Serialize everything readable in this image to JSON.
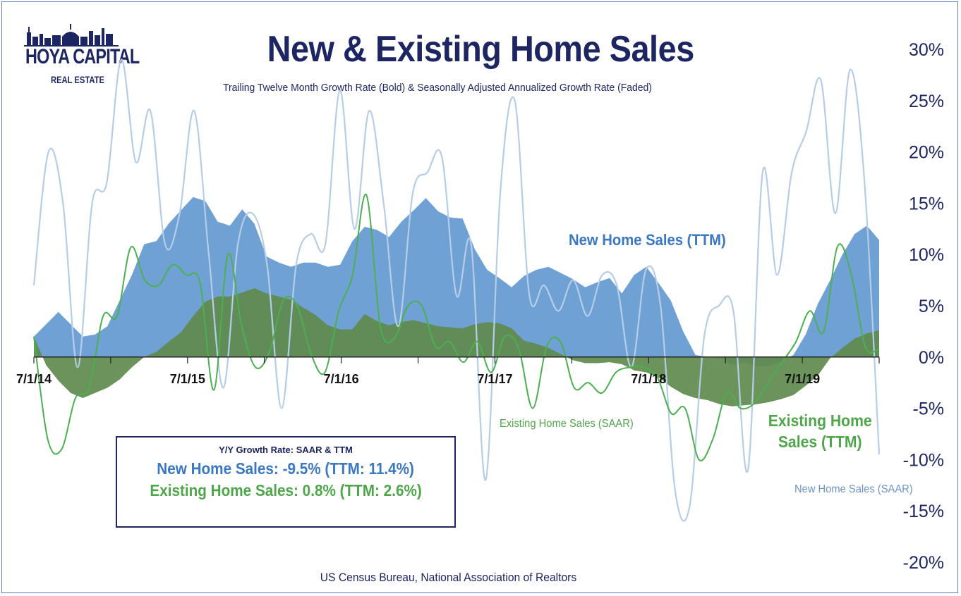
{
  "logo": {
    "line1": "HOYA CAPITAL",
    "line2": "REAL ESTATE",
    "color": "#1d2563"
  },
  "info_box": {
    "heading": "Y/Y Growth Rate: SAAR & TTM",
    "new_line": "New Home Sales: -9.5% (TTM: 11.4%)",
    "existing_line": "Existing Home Sales: 0.8% (TTM: 2.6%)"
  },
  "annotations": {
    "new_ttm": "New Home Sales (TTM)",
    "existing_ttm": [
      "Existing Home",
      "Sales (TTM)"
    ],
    "existing_saar": "Existing Home Sales (SAAR)",
    "new_saar": "New Home Sales (SAAR)"
  },
  "source": "US Census Bureau, National Association of Realtors",
  "colors": {
    "new_ttm_fill": "#6fa1d4",
    "existing_ttm_fill": "#5f8a4d",
    "new_saar_line": "#b6cde8",
    "existing_saar_line": "#4caf50",
    "title": "#1d2563"
  },
  "chart_data": {
    "type": "area",
    "title": "New & Existing Home Sales",
    "subtitle": "Trailing Twelve Month Growth Rate (Bold) & Seasonally Adjusted Annualized Growth Rate (Faded)",
    "ylim": [
      -20,
      30
    ],
    "yticks": [
      30,
      25,
      20,
      15,
      10,
      5,
      0,
      -5,
      -10,
      -15,
      -20
    ],
    "ytick_labels": [
      "30%",
      "25%",
      "20%",
      "15%",
      "10%",
      "5%",
      "0%",
      "-5%",
      "-10%",
      "-15%",
      "-20%"
    ],
    "x_axis_position": "y=0",
    "xtick_labels": [
      "7/1/14",
      "7/1/15",
      "7/1/16",
      "7/1/17",
      "7/1/18",
      "7/1/19"
    ],
    "xtick_month_index": [
      0,
      12,
      24,
      36,
      48,
      60
    ],
    "months": 67,
    "series": [
      {
        "name": "New Home Sales (TTM)",
        "style": "area",
        "values": [
          2,
          3.2,
          4.4,
          3.2,
          2,
          2.2,
          3,
          5.5,
          8,
          11,
          11.3,
          13,
          14.3,
          15.6,
          15.2,
          13.2,
          12.8,
          14.4,
          13,
          9.8,
          9.2,
          8.8,
          9.2,
          9.2,
          8.8,
          9,
          11.3,
          12.7,
          12.4,
          11.7,
          13.2,
          14.3,
          15.5,
          14.2,
          13.6,
          13.5,
          10.5,
          8.5,
          7.7,
          6.8,
          7.9,
          8.5,
          8.8,
          8.2,
          7.6,
          6.8,
          7.3,
          7.7,
          6.2,
          8.0,
          8.8,
          7.2,
          5.5,
          2.5,
          0.2,
          0.0,
          0.0,
          -0.8,
          -0.5,
          -0.9,
          -0.9,
          -0.4,
          0.2,
          2.2,
          5.2,
          7.5,
          10.0,
          12.0,
          12.8,
          11.4
        ]
      },
      {
        "name": "Existing Home Sales (TTM)",
        "style": "area",
        "values": [
          2,
          -0.8,
          -2.3,
          -3.5,
          -4,
          -3.5,
          -3,
          -2.2,
          -1,
          0,
          0.5,
          1.5,
          2.4,
          4,
          5.4,
          5.9,
          5.9,
          6.3,
          6.7,
          6.2,
          5.9,
          5.6,
          4.8,
          4.1,
          3.1,
          2.7,
          2.7,
          4.2,
          3.5,
          3.1,
          3.4,
          3.6,
          3.3,
          3.0,
          2.9,
          2.8,
          3.2,
          3.4,
          3.3,
          2.8,
          1.6,
          1.3,
          0.9,
          0.3,
          -0.3,
          -0.6,
          -0.6,
          -0.5,
          -0.7,
          -1.3,
          -1.5,
          -2.0,
          -2.9,
          -3.6,
          -4.0,
          -4.2,
          -4.6,
          -4.8,
          -4.7,
          -4.6,
          -4.4,
          -4.1,
          -3.7,
          -2.8,
          -1.8,
          -0.1,
          0.9,
          1.8,
          2.3,
          2.6
        ]
      },
      {
        "name": "New Home Sales (SAAR)",
        "style": "line",
        "values": [
          7,
          20,
          15,
          -1,
          15,
          17,
          29,
          19,
          24,
          11,
          14,
          24,
          10,
          -3,
          11,
          14,
          9,
          -5,
          9,
          12,
          11,
          26,
          12.5,
          24,
          15,
          3,
          16,
          18,
          19.5,
          6,
          11,
          -12,
          16,
          25,
          6,
          7,
          4.5,
          7.5,
          4,
          8,
          7,
          -1,
          8.5,
          5,
          -13,
          -14.5,
          2,
          5,
          4.5,
          -11,
          18,
          8,
          18,
          22,
          27,
          14,
          28,
          17,
          -9.5
        ]
      },
      {
        "name": "Existing Home Sales (SAAR)",
        "style": "line",
        "values": [
          2,
          -8,
          -9,
          -4,
          -3,
          4,
          4,
          10.7,
          7.5,
          7,
          9,
          8,
          7.2,
          -3.2,
          10,
          3,
          -1,
          0.5,
          5.5,
          5,
          0.3,
          -1.5,
          4.5,
          8,
          15.8,
          3,
          1.8,
          5,
          5,
          1,
          1.5,
          -0.5,
          1.5,
          -1.5,
          2,
          0.8,
          -5,
          1,
          1.5,
          -3,
          -2.5,
          -3.5,
          -1.5,
          -1,
          -1,
          -2,
          -5.5,
          -5,
          -10,
          -8,
          -3.5,
          -5,
          -4.5,
          -2.5,
          -0.5,
          1.5,
          4.5,
          2.5,
          10.8,
          8,
          1,
          0.8
        ]
      }
    ]
  }
}
